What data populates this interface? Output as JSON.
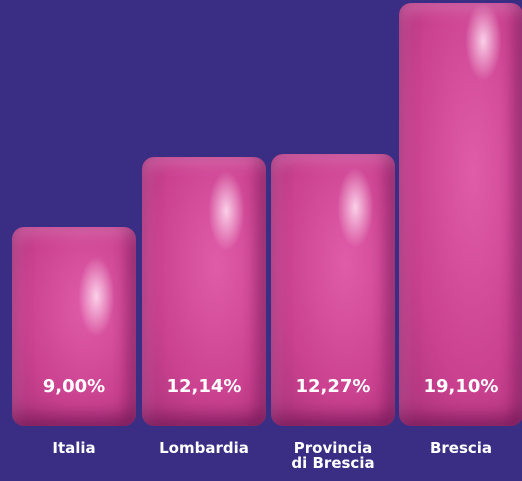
{
  "chart_data": {
    "type": "bar",
    "categories": [
      "Italia",
      "Lombardia",
      "Provincia di Brescia",
      "Brescia"
    ],
    "values": [
      9.0,
      12.14,
      12.27,
      19.1
    ],
    "value_labels": [
      "9,00%",
      "12,14%",
      "12,27%",
      "19,10%"
    ],
    "color": "#c9418f",
    "background": "#3a2e84"
  }
}
